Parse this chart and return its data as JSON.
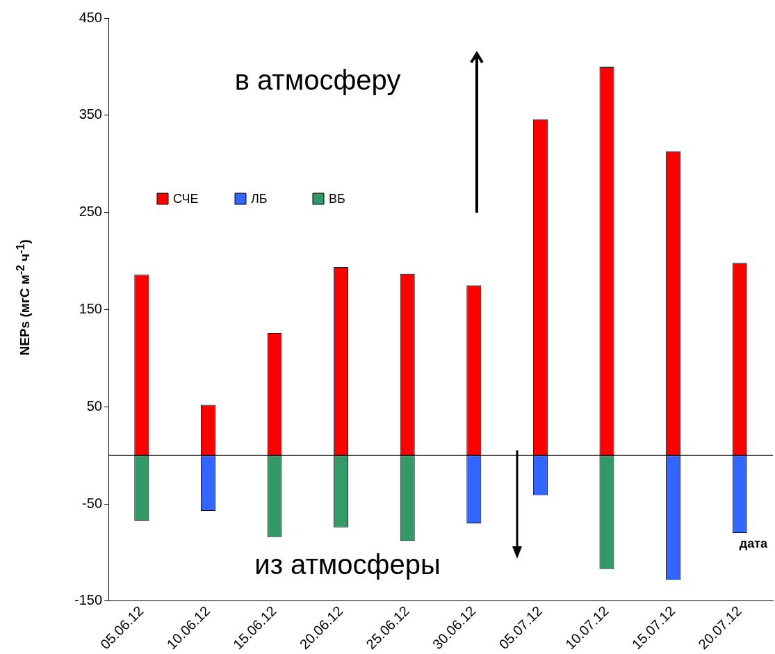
{
  "chart_data": {
    "type": "bar",
    "stacked": true,
    "xlabel": "дата",
    "ylabel": "NEPs (мгС м$^{-2}$ ч$^{-1}$)",
    "categories": [
      "05.06.12",
      "10.06.12",
      "15.06.12",
      "20.06.12",
      "25.06.12",
      "30.06.12",
      "05.07.12",
      "10.07.12",
      "15.07.12",
      "20.07.12"
    ],
    "series": [
      {
        "name": "СЧЕ",
        "color": "#ff0000",
        "values": [
          186,
          52,
          126,
          194,
          187,
          175,
          346,
          400,
          313,
          198
        ]
      },
      {
        "name": "ЛБ",
        "color": "#3366ff",
        "values": [
          null,
          -57,
          null,
          null,
          null,
          -70,
          -41,
          null,
          -128,
          -80
        ]
      },
      {
        "name": "ВБ",
        "color": "#339966",
        "values": [
          -67,
          null,
          -84,
          -74,
          -88,
          null,
          null,
          -117,
          null,
          null
        ]
      }
    ],
    "ylim": [
      -150,
      450
    ],
    "yticks": [
      -150,
      -50,
      50,
      150,
      250,
      350,
      450
    ],
    "ref_lines": [
      {
        "axis": "y",
        "value": 0,
        "color": "#000000"
      }
    ],
    "annotations": [
      "в атмосферу",
      "из атмосферы"
    ],
    "legend": "top left",
    "grid": false
  }
}
